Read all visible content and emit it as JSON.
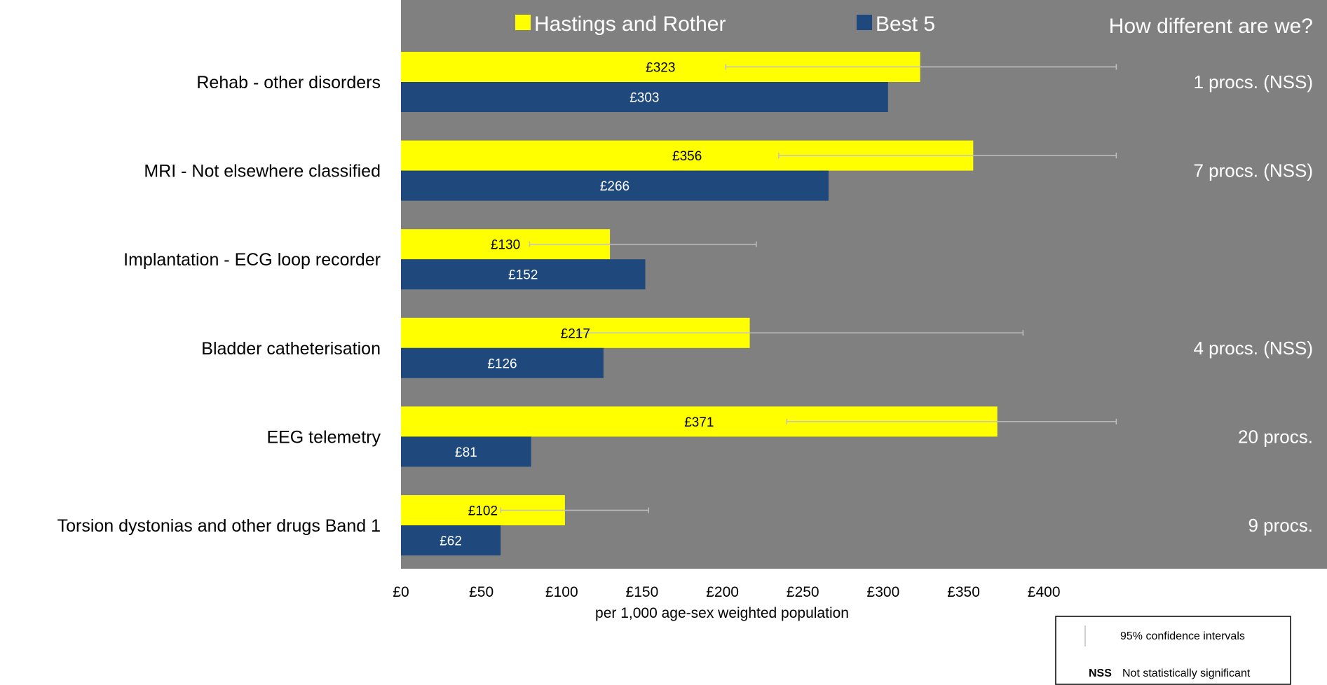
{
  "chart_data": {
    "type": "bar",
    "orientation": "horizontal",
    "categories": [
      "Rehab - other disorders",
      "MRI - Not elsewhere classified",
      "Implantation - ECG loop recorder",
      "Bladder catheterisation",
      "EEG telemetry",
      "Torsion dystonias and other drugs Band 1"
    ],
    "series": [
      {
        "name": "Hastings and Rother",
        "color": "#ffff00",
        "values": [
          323,
          356,
          130,
          217,
          371,
          102
        ],
        "labels": [
          "£323",
          "£356",
          "£130",
          "£217",
          "£371",
          "£102"
        ],
        "ci_low": [
          202,
          235,
          80,
          110,
          240,
          62
        ],
        "ci_high": [
          445,
          445,
          221,
          387,
          445,
          154
        ]
      },
      {
        "name": "Best 5",
        "color": "#1f497d",
        "values": [
          303,
          266,
          152,
          126,
          81,
          62
        ],
        "labels": [
          "£303",
          "£266",
          "£152",
          "£126",
          "£81",
          "£62"
        ]
      }
    ],
    "xlim": [
      0,
      400
    ],
    "xticks": [
      "£0",
      "£50",
      "£100",
      "£150",
      "£200",
      "£250",
      "£300",
      "£350",
      "£400"
    ],
    "xlabel": "per 1,000 age-sex weighted population",
    "legend_placement": "top",
    "plot_background": "#808080",
    "error_bar_color": "#c0c0c0",
    "differences": {
      "title": "How different are we?",
      "values": [
        "1 procs. (NSS)",
        "7 procs. (NSS)",
        "",
        "4 procs. (NSS)",
        "20 procs.",
        "9 procs."
      ]
    }
  },
  "key": {
    "ci_label": "95% confidence intervals",
    "nss_abbr": "NSS",
    "nss_label": "Not statistically significant"
  }
}
